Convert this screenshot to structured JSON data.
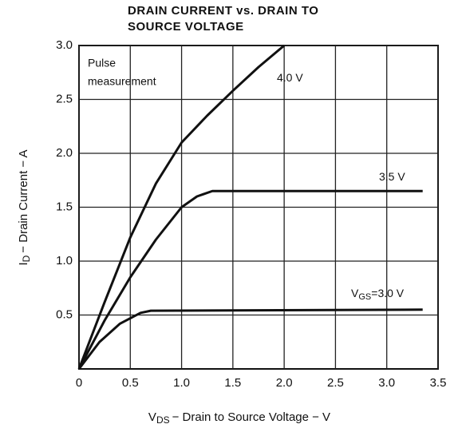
{
  "chart_data": {
    "type": "line",
    "title": [
      "DRAIN CURRENT vs. DRAIN TO",
      "SOURCE VOLTAGE"
    ],
    "annotation": [
      "Pulse",
      "measurement"
    ],
    "xlabel": {
      "symbol": "V",
      "subscript": "DS",
      "text": "− Drain to Source Voltage − V"
    },
    "ylabel": {
      "symbol": "I",
      "subscript": "D",
      "text": "− Drain Current − A"
    },
    "xlim": [
      0,
      3.5
    ],
    "ylim": [
      0,
      3.0
    ],
    "xticks": [
      0,
      0.5,
      {
        "value": 1,
        "label": "1.0"
      },
      1.5,
      {
        "value": 2,
        "label": "2.0"
      },
      2.5,
      {
        "value": 3,
        "label": "3.0"
      },
      3.5
    ],
    "yticks": [
      0.5,
      {
        "value": 1,
        "label": "1.0"
      },
      1.5,
      {
        "value": 2,
        "label": "2.0"
      },
      2.5,
      {
        "value": 3,
        "label": "3.0"
      }
    ],
    "grid": true,
    "series": [
      {
        "name": "4.0 V",
        "color": "#111111",
        "x": [
          0,
          0.25,
          0.5,
          0.75,
          1.0,
          1.25,
          1.5,
          1.75,
          2.0
        ],
        "values": [
          0,
          0.62,
          1.22,
          1.72,
          2.1,
          2.35,
          2.58,
          2.8,
          3.0
        ]
      },
      {
        "name": "3.5 V",
        "color": "#111111",
        "x": [
          0,
          0.25,
          0.5,
          0.75,
          1.0,
          1.15,
          1.3,
          3.35
        ],
        "values": [
          0,
          0.45,
          0.85,
          1.2,
          1.5,
          1.6,
          1.65,
          1.65
        ]
      },
      {
        "name": "3.0 V",
        "name_prefix": {
          "symbol": "V",
          "subscript": "GS",
          "text": "="
        },
        "color": "#111111",
        "x": [
          0,
          0.2,
          0.4,
          0.6,
          0.7,
          3.35
        ],
        "values": [
          0,
          0.25,
          0.42,
          0.52,
          0.54,
          0.55
        ]
      }
    ]
  }
}
